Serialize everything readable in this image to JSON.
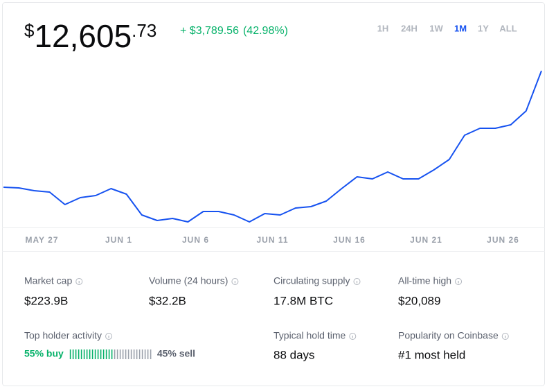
{
  "price": {
    "currency": "$",
    "whole": "12,605",
    "cents": ".73"
  },
  "change": {
    "amount": "+ $3,789.56",
    "percent": "(42.98%)"
  },
  "ranges": [
    {
      "label": "1H",
      "active": false
    },
    {
      "label": "24H",
      "active": false
    },
    {
      "label": "1W",
      "active": false
    },
    {
      "label": "1M",
      "active": true
    },
    {
      "label": "1Y",
      "active": false
    },
    {
      "label": "ALL",
      "active": false
    }
  ],
  "chart": {
    "type": "line",
    "color": "#1652f0",
    "values": [
      8737,
      8714,
      8622,
      8576,
      8161,
      8391,
      8460,
      8691,
      8506,
      7815,
      7631,
      7700,
      7584,
      7930,
      7930,
      7815,
      7584,
      7861,
      7815,
      8045,
      8092,
      8276,
      8691,
      9083,
      9014,
      9244,
      9014,
      9014,
      9313,
      9659,
      10466,
      10696,
      10696,
      10811,
      11272,
      12606
    ],
    "ylim": [
      7400,
      13000
    ],
    "xticks": [
      {
        "value": 2.5,
        "label": "MAY 27"
      },
      {
        "value": 7.5,
        "label": "JUN 1"
      },
      {
        "value": 12.5,
        "label": "JUN 6"
      },
      {
        "value": 17.5,
        "label": "JUN 11"
      },
      {
        "value": 22.5,
        "label": "JUN 16"
      },
      {
        "value": 27.5,
        "label": "JUN 21"
      },
      {
        "value": 32.5,
        "label": "JUN 26"
      }
    ]
  },
  "stats": [
    {
      "label": "Market cap",
      "value": "$223.9B"
    },
    {
      "label": "Volume (24 hours)",
      "value": "$32.2B"
    },
    {
      "label": "Circulating supply",
      "value": "17.8M BTC"
    },
    {
      "label": "All-time high",
      "value": "$20,089"
    }
  ],
  "holder_activity": {
    "label": "Top holder activity",
    "buy": {
      "value": 55,
      "label": "55% buy"
    },
    "sell": {
      "value": 45,
      "label": "45% sell"
    }
  },
  "stats_2": [
    {
      "label": "Typical hold time",
      "value": "88 days"
    },
    {
      "label": "Popularity on Coinbase",
      "value": "#1 most held"
    }
  ]
}
